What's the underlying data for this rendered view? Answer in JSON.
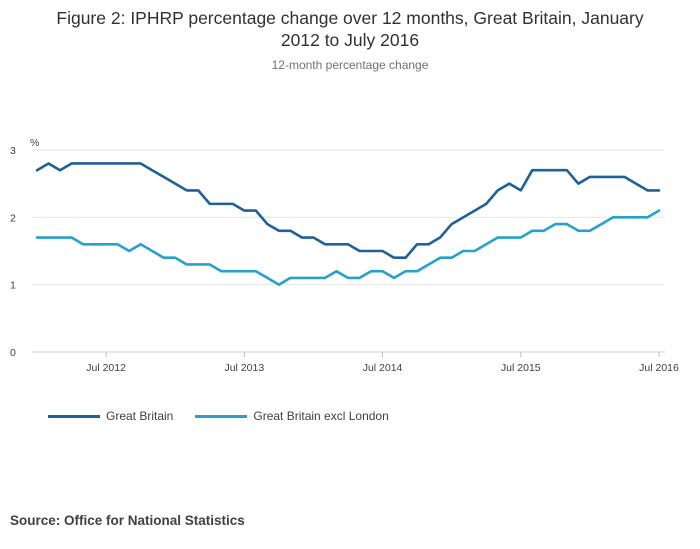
{
  "chart_data": {
    "type": "line",
    "title_line1": "Figure 2: IPHRP percentage change over 12 months, Great Britain, January",
    "title_line2": "2012 to July 2016",
    "subtitle": "12-month percentage change",
    "ylabel": "%",
    "xlabel": "",
    "ylim": [
      0,
      3
    ],
    "yticks": [
      0,
      1,
      2,
      3
    ],
    "x_start": "Jan 2012",
    "x_end": "Jul 2016",
    "x_tick_labels": [
      {
        "label": "Jul 2012",
        "index": 6
      },
      {
        "label": "Jul 2013",
        "index": 18
      },
      {
        "label": "Jul 2014",
        "index": 30
      },
      {
        "label": "Jul 2015",
        "index": 42
      },
      {
        "label": "Jul 2016",
        "index": 54
      }
    ],
    "grid": true,
    "legend_position": "bottom-left",
    "series": [
      {
        "name": "Great Britain",
        "color": "#206095",
        "values": [
          2.7,
          2.8,
          2.7,
          2.8,
          2.8,
          2.8,
          2.8,
          2.8,
          2.8,
          2.8,
          2.7,
          2.6,
          2.5,
          2.4,
          2.4,
          2.2,
          2.2,
          2.2,
          2.1,
          2.1,
          1.9,
          1.8,
          1.8,
          1.7,
          1.7,
          1.6,
          1.6,
          1.6,
          1.5,
          1.5,
          1.5,
          1.4,
          1.4,
          1.6,
          1.6,
          1.7,
          1.9,
          2.0,
          2.1,
          2.2,
          2.4,
          2.5,
          2.4,
          2.7,
          2.7,
          2.7,
          2.7,
          2.5,
          2.6,
          2.6,
          2.6,
          2.6,
          2.5,
          2.4,
          2.4
        ]
      },
      {
        "name": "Great Britain excl London",
        "color": "#27a0cc",
        "values": [
          1.7,
          1.7,
          1.7,
          1.7,
          1.6,
          1.6,
          1.6,
          1.6,
          1.5,
          1.6,
          1.5,
          1.4,
          1.4,
          1.3,
          1.3,
          1.3,
          1.2,
          1.2,
          1.2,
          1.2,
          1.1,
          1.0,
          1.1,
          1.1,
          1.1,
          1.1,
          1.2,
          1.1,
          1.1,
          1.2,
          1.2,
          1.1,
          1.2,
          1.2,
          1.3,
          1.4,
          1.4,
          1.5,
          1.5,
          1.6,
          1.7,
          1.7,
          1.7,
          1.8,
          1.8,
          1.9,
          1.9,
          1.8,
          1.8,
          1.9,
          2.0,
          2.0,
          2.0,
          2.0,
          2.1
        ]
      }
    ],
    "source": "Source: Office for National Statistics"
  }
}
